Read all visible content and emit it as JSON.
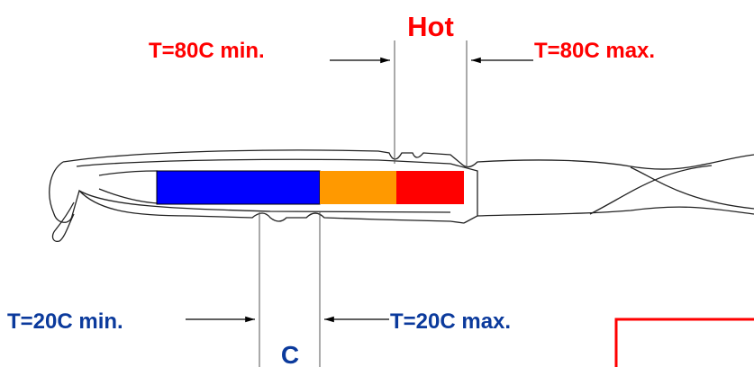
{
  "labels": {
    "hot": "Hot",
    "hot_min": "T=80C min.",
    "hot_max": "T=80C max.",
    "cold_min": "T=20C min.",
    "cold_max": "T=20C max.",
    "cold": "C"
  }
}
